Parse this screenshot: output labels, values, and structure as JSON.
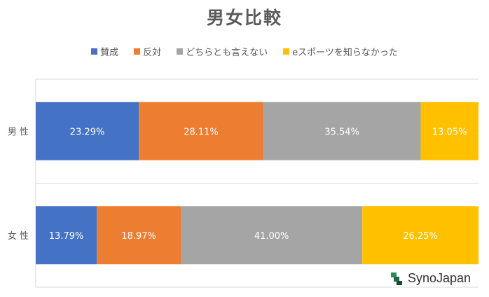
{
  "chart_data": {
    "type": "bar",
    "orientation": "horizontal",
    "stacked": true,
    "percent_stacked": true,
    "title": "男女比較",
    "categories": [
      "男 性",
      "女 性"
    ],
    "series": [
      {
        "name": "賛成",
        "color": "#4472C4",
        "values": [
          23.29,
          13.79
        ],
        "labels": [
          "23.29%",
          "13.79%"
        ]
      },
      {
        "name": "反対",
        "color": "#ED7D31",
        "values": [
          28.11,
          18.97
        ],
        "labels": [
          "28.11%",
          "18.97%"
        ]
      },
      {
        "name": "どちらとも言えない",
        "color": "#A5A5A5",
        "values": [
          35.54,
          41.0
        ],
        "labels": [
          "35.54%",
          "41.00%"
        ]
      },
      {
        "name": "eスポーツを知らなかった",
        "color": "#FFC000",
        "values": [
          13.05,
          26.25
        ],
        "labels": [
          "13.05%",
          "26.25%"
        ]
      }
    ],
    "xlim": [
      0,
      100
    ],
    "legend_position": "top",
    "grid": true
  },
  "logo": {
    "text": "SynoJapan",
    "icon": "synojapan-logo-icon"
  }
}
